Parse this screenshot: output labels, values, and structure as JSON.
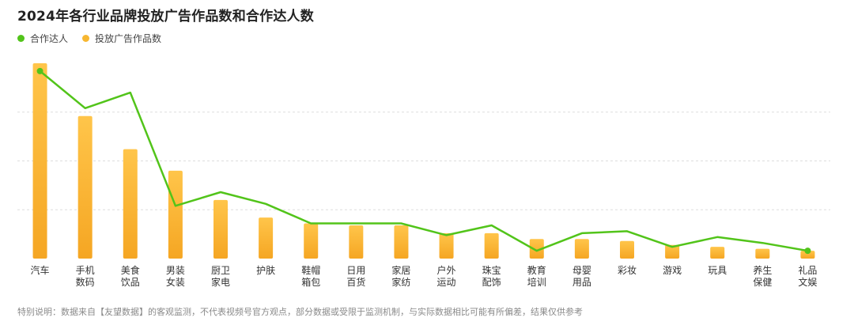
{
  "title": "2024年各行业品牌投放广告作品数和合作达人数",
  "legend": [
    {
      "label": "合作达人",
      "color": "#52c41a"
    },
    {
      "label": "投放广告作品数",
      "color": "#f7b731"
    }
  ],
  "footnote": "特别说明：数据来自【友望数据】的客观监测，不代表视频号官方观点，部分数据或受限于监测机制，与实际数据相比可能有所偏差，结果仅供参考",
  "chart_data": {
    "type": "bar+line",
    "categories": [
      [
        "汽车"
      ],
      [
        "手机",
        "数码"
      ],
      [
        "美食",
        "饮品"
      ],
      [
        "男装",
        "女装"
      ],
      [
        "厨卫",
        "家电"
      ],
      [
        "护肤"
      ],
      [
        "鞋帽",
        "箱包"
      ],
      [
        "日用",
        "百货"
      ],
      [
        "家居",
        "家纺"
      ],
      [
        "户外",
        "运动"
      ],
      [
        "珠宝",
        "配饰"
      ],
      [
        "教育",
        "培训"
      ],
      [
        "母婴",
        "用品"
      ],
      [
        "彩妆"
      ],
      [
        "游戏"
      ],
      [
        "玩具"
      ],
      [
        "养生",
        "保健"
      ],
      [
        "礼品",
        "文娱"
      ]
    ],
    "series": [
      {
        "name": "投放广告作品数",
        "type": "bar",
        "color": "#f7b731",
        "values": [
          100,
          73,
          56,
          45,
          30,
          21,
          18,
          17,
          17,
          13,
          13,
          10,
          10,
          9,
          7,
          6,
          5,
          4
        ]
      },
      {
        "name": "合作达人",
        "type": "line",
        "color": "#52c41a",
        "values": [
          96,
          77,
          85,
          27,
          34,
          28,
          18,
          18,
          18,
          12,
          17,
          4,
          13,
          14,
          6,
          11,
          8,
          4
        ]
      }
    ],
    "ylim": [
      0,
      100
    ],
    "grid": true
  }
}
